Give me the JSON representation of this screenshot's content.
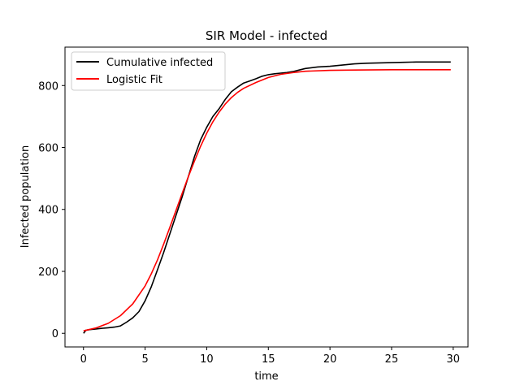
{
  "chart_data": {
    "type": "line",
    "title": "SIR Model - infected",
    "xlabel": "time",
    "ylabel": "Infected population",
    "xlim": [
      -1.5,
      31.2
    ],
    "ylim": [
      -44,
      924
    ],
    "xticks": [
      0,
      5,
      10,
      15,
      20,
      25,
      30
    ],
    "yticks": [
      0,
      200,
      400,
      600,
      800
    ],
    "grid": false,
    "legend_position": "top-left",
    "series": [
      {
        "name": "Cumulative infected",
        "color": "#000000",
        "x": [
          0,
          0.2,
          0.5,
          1,
          1.5,
          2,
          2.5,
          3,
          3.5,
          4,
          4.5,
          5,
          5.5,
          6,
          6.5,
          7,
          7.5,
          8,
          8.5,
          9,
          9.5,
          10,
          10.5,
          11,
          11.5,
          12,
          12.5,
          13,
          13.5,
          14,
          14.5,
          15,
          15.5,
          16,
          16.5,
          17,
          17.5,
          18,
          19,
          20,
          21,
          22,
          23,
          24,
          25,
          26,
          27,
          28,
          29,
          29.8
        ],
        "values": [
          0,
          10,
          12,
          14,
          16,
          18,
          20,
          24,
          36,
          50,
          70,
          105,
          150,
          205,
          260,
          320,
          380,
          440,
          505,
          570,
          625,
          665,
          700,
          725,
          755,
          780,
          795,
          808,
          815,
          822,
          830,
          835,
          838,
          840,
          842,
          845,
          850,
          855,
          860,
          862,
          866,
          870,
          872,
          873,
          874,
          875,
          876,
          876,
          876,
          876
        ]
      },
      {
        "name": "Logistic Fit",
        "color": "#ff0000",
        "x": [
          0,
          1,
          2,
          3,
          4,
          5,
          5.5,
          6,
          6.5,
          7,
          7.5,
          8,
          8.5,
          9,
          9.5,
          10,
          10.5,
          11,
          11.5,
          12,
          12.5,
          13,
          14,
          15,
          16,
          17,
          18,
          20,
          22,
          25,
          28,
          29.8
        ],
        "values": [
          8,
          17,
          32,
          57,
          95,
          153,
          192,
          237,
          287,
          341,
          396,
          451,
          505,
          556,
          604,
          646,
          683,
          714,
          740,
          761,
          778,
          791,
          810,
          826,
          836,
          842,
          846,
          849,
          850,
          851,
          851,
          851
        ]
      }
    ]
  }
}
